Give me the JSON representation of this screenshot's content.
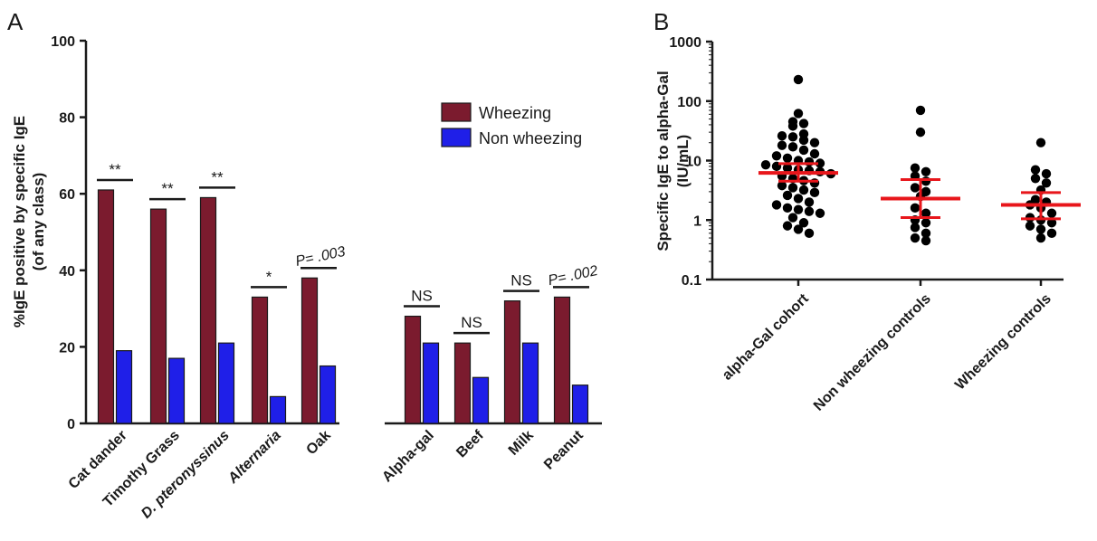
{
  "panel_a_letter": "A",
  "panel_b_letter": "B",
  "colors": {
    "wheezing": "#7b1b2e",
    "non_wheezing": "#1f1fe8",
    "median_bar": "#e8161b",
    "dot": "#000000"
  },
  "chart_data": [
    {
      "type": "bar",
      "panel": "A",
      "categories": [
        "Cat dander",
        "Timothy Grass",
        "D. pteronyssinus",
        "Alternaria",
        "Oak",
        "Alpha-gal",
        "Beef",
        "Milk",
        "Peanut"
      ],
      "italic_categories": [
        "D. pteronyssinus",
        "Alternaria"
      ],
      "series": [
        {
          "name": "Wheezing",
          "values": [
            61,
            56,
            59,
            33,
            38,
            28,
            21,
            32,
            33
          ]
        },
        {
          "name": "Non wheezing",
          "values": [
            19,
            17,
            21,
            7,
            15,
            21,
            12,
            21,
            10
          ]
        }
      ],
      "significance": [
        "**",
        "**",
        "**",
        "*",
        "P= .003",
        "NS",
        "NS",
        "NS",
        "P= .002"
      ],
      "ylabel": "%IgE positive by specific IgE",
      "ylabel2": "(of any class)",
      "ylim": [
        0,
        100
      ],
      "yticks": [
        "0",
        "20",
        "40",
        "60",
        "80",
        "100"
      ],
      "legend": "top-right"
    },
    {
      "type": "scatter",
      "panel": "B",
      "categories": [
        "alpha-Gal cohort",
        "Non wheezing controls",
        "Wheezing controls"
      ],
      "ylabel": "Specific IgE to alpha-Gal",
      "ylabel2": "(IU/mL)",
      "yscale": "log",
      "ylim": [
        0.1,
        1000
      ],
      "yticks": [
        "0.1",
        "1",
        "10",
        "100",
        "1000"
      ],
      "groups": [
        {
          "name": "alpha-Gal cohort",
          "values": [
            230,
            62,
            45,
            42,
            38,
            28,
            26,
            25,
            22,
            20,
            18,
            17,
            15,
            13,
            12,
            11,
            10,
            9.5,
            9,
            8.5,
            8,
            7.5,
            7,
            6.8,
            6.5,
            6,
            5.5,
            5,
            4.6,
            4.2,
            3.8,
            3.5,
            3.2,
            2.9,
            2.6,
            2.3,
            2.0,
            1.8,
            1.6,
            1.5,
            1.4,
            1.3,
            1.1,
            0.9,
            0.8,
            0.7,
            0.6
          ],
          "median": 6.2,
          "ci": [
            4.5,
            8.9
          ]
        },
        {
          "name": "Non wheezing controls",
          "values": [
            70,
            30,
            7.5,
            6.5,
            5.5,
            4.5,
            3.5,
            3.0,
            2.5,
            1.6,
            1.3,
            1.0,
            0.9,
            0.75,
            0.6,
            0.5,
            0.45
          ],
          "median": 2.3,
          "ci": [
            1.1,
            4.8
          ]
        },
        {
          "name": "Wheezing controls",
          "values": [
            20,
            7.0,
            6.0,
            5.0,
            4.2,
            3.2,
            2.2,
            2.0,
            1.8,
            1.6,
            1.3,
            1.1,
            1.0,
            0.9,
            0.8,
            0.7,
            0.6,
            0.5
          ],
          "median": 1.8,
          "ci": [
            1.05,
            2.9
          ]
        }
      ]
    }
  ]
}
